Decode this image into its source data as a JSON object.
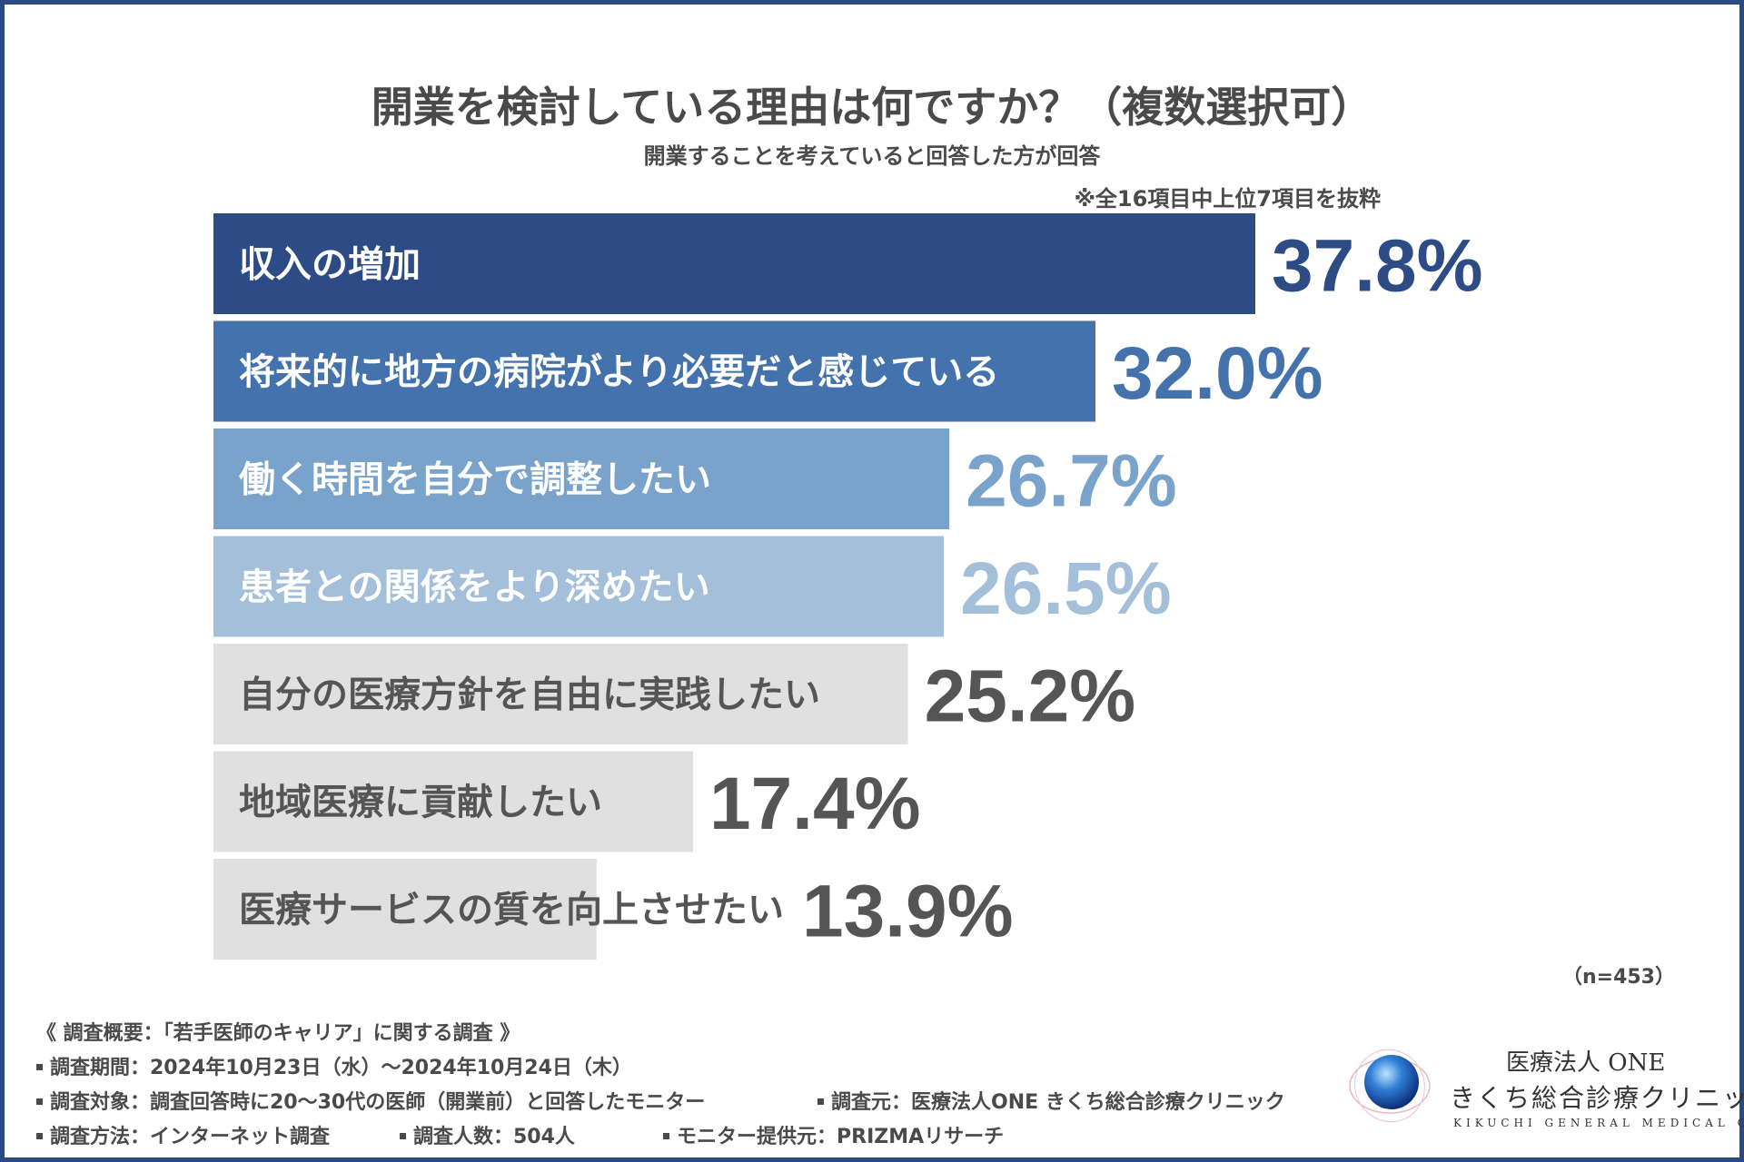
{
  "chart_data": {
    "type": "bar",
    "orientation": "horizontal",
    "title": "開業を検討している理由は何ですか？（複数選択可）",
    "subtitle": "開業することを考えていると回答した方が回答",
    "note": "※全16項目中上位7項目を抜粋",
    "sample_size": "（n=453）",
    "xlim": [
      0,
      40
    ],
    "categories": [
      "収入の増加",
      "将来的に地方の病院がより必要だと感じている",
      "働く時間を自分で調整したい",
      "患者との関係をより深めたい",
      "自分の医療方針を自由に実践したい",
      "地域医療に貢献したい",
      "医療サービスの質を向上させたい"
    ],
    "values": [
      37.8,
      32.0,
      26.7,
      26.5,
      25.2,
      17.4,
      13.9
    ],
    "value_labels": [
      "37.8%",
      "32.0%",
      "26.7%",
      "26.5%",
      "25.2%",
      "17.4%",
      "13.9%"
    ],
    "bar_colors": [
      "#2d4b85",
      "#4472ad",
      "#7aa3cb",
      "#a4bfd9",
      "#e0e0e0",
      "#e0e0e0",
      "#e0e0e0"
    ],
    "label_colors": [
      "#ffffff",
      "#ffffff",
      "#ffffff",
      "#ffffff",
      "#555555",
      "#555555",
      "#555555"
    ],
    "value_colors": [
      "#2d4b85",
      "#4472ad",
      "#7aa3cb",
      "#a4bfd9",
      "#555555",
      "#555555",
      "#555555"
    ]
  },
  "survey": {
    "heading": "《 調査概要：「若手医師のキャリア」に関する調査 》",
    "period": "調査期間：2024年10月23日（水）〜2024年10月24日（木）",
    "target": "調査対象：調査回答時に20〜30代の医師（開業前）と回答したモニター",
    "source": "調査元：医療法人ONE きくち総合診療クリニック",
    "method": "調査方法：インターネット調査",
    "count": "調査人数：504人",
    "provider": "モニター提供元：PRIZMAリサーチ"
  },
  "logo": {
    "org": "医療法人 ONE",
    "clinic": "きくち総合診療クリニック",
    "english": "KIKUCHI GENERAL MEDICAL CLINIC"
  }
}
